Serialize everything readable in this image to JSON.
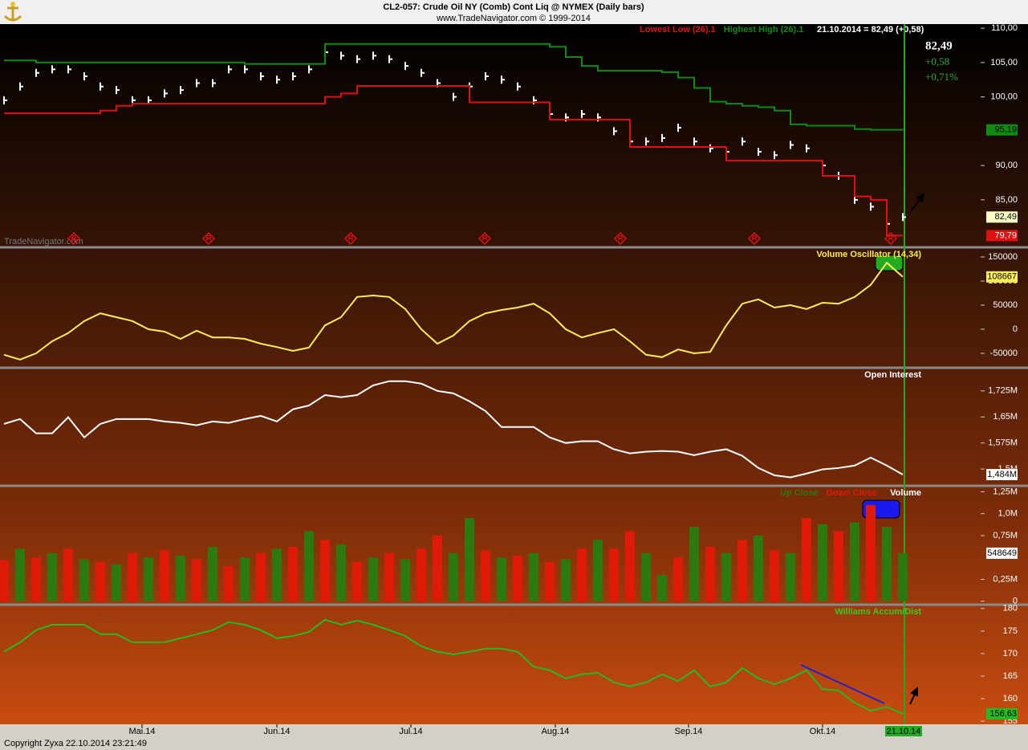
{
  "header": {
    "title": "CL2-057:  Crude Oil NY (Comb) Cont Liq @ NYMEX  (Daily bars)",
    "subtitle": "www.TradeNavigator.com © 1999-2014"
  },
  "footer": "Copyright Zyxa    22.10.2014 23:21:49",
  "watermark": "TradeNavigator.com",
  "event_marker": "R",
  "x_axis": {
    "xlim": [
      0,
      60.85
    ],
    "xticks": [
      {
        "value": 8.6,
        "label": "Mai.14"
      },
      {
        "value": 17,
        "label": "Jun.14"
      },
      {
        "value": 25.35,
        "label": "Jul.14"
      },
      {
        "value": 34.35,
        "label": "Aug.14"
      },
      {
        "value": 42.65,
        "label": "Sep.14"
      },
      {
        "value": 51,
        "label": "Okt.14"
      }
    ],
    "cursor": {
      "value": 56,
      "label": "21.10.14",
      "color": "#22aa22"
    }
  },
  "price_info": {
    "date_value": "21.10.2014 = 82,49 (+0,58)",
    "last": "82,49",
    "change": "+0,58",
    "change_pct": "+0,71%"
  },
  "chart_data": [
    {
      "type": "line",
      "ylim": [
        78.2,
        110.6
      ],
      "yticks": [
        {
          "value": 110,
          "label": "110,00"
        },
        {
          "value": 105,
          "label": "105,00"
        },
        {
          "value": 100,
          "label": "100,00"
        },
        {
          "value": 90,
          "label": "90,00"
        },
        {
          "value": 85,
          "label": "85,00"
        }
      ],
      "grid": false,
      "series": [
        {
          "color": "#ffffff",
          "marker": "tick",
          "values": [
            99.5,
            101.5,
            103.5,
            104,
            104,
            103,
            101.5,
            101,
            99.5,
            99.5,
            100.5,
            101,
            102,
            102,
            104,
            104,
            103,
            102.5,
            103,
            104,
            106.5,
            106,
            105.5,
            106,
            105.5,
            104.5,
            103.5,
            102,
            100,
            101.5,
            103,
            102.5,
            101.5,
            99.5,
            97.5,
            97,
            97.5,
            97,
            95,
            93.5,
            93.5,
            94,
            95.5,
            93.5,
            92.5,
            92,
            93.5,
            92,
            91.5,
            93,
            92.5,
            90,
            88.5,
            85,
            84,
            81.5,
            82.49
          ]
        },
        {
          "name": "Lowest Low (26).1",
          "color": "#e01010",
          "step": true,
          "values": [
            97.6,
            97.6,
            97.6,
            97.6,
            97.6,
            97.6,
            98,
            98.7,
            99,
            99,
            99,
            99,
            99,
            99,
            99,
            99,
            99,
            99,
            99,
            99,
            100,
            100.5,
            101.6,
            101.6,
            101.6,
            101.6,
            101.6,
            101.6,
            101.6,
            99.2,
            99.2,
            99.2,
            99.2,
            99.2,
            96.7,
            96.7,
            96.7,
            96.7,
            96.7,
            92.7,
            92.7,
            92.7,
            92.7,
            92.7,
            92.7,
            90.7,
            90.7,
            90.7,
            90.7,
            90.7,
            90.7,
            88.5,
            88.5,
            85.5,
            85,
            79.79,
            79.79
          ]
        },
        {
          "name": "Highest High (26).1",
          "color": "#108a10",
          "step": true,
          "values": [
            105.3,
            105.3,
            105,
            105,
            105,
            105,
            105,
            105,
            105,
            105,
            105,
            105,
            105,
            105,
            105,
            104.8,
            104.8,
            104.8,
            104.8,
            104.8,
            107.7,
            107.7,
            107.7,
            107.7,
            107.7,
            107.7,
            107.7,
            107.7,
            107.7,
            107.7,
            107.7,
            107.7,
            107.7,
            107.7,
            107.3,
            105.8,
            104.5,
            103.8,
            103.8,
            103.8,
            103.8,
            103.6,
            102.8,
            101.3,
            99.3,
            99,
            98.7,
            98.5,
            98,
            96,
            95.8,
            95.8,
            95.8,
            95.3,
            95.2,
            95.2,
            95.19
          ]
        }
      ],
      "tags": [
        {
          "value": 82.49,
          "label": "82,49",
          "bg": "#ffffc8",
          "fg": "#000000"
        },
        {
          "value": 79.79,
          "label": "79,79",
          "bg": "#e01010",
          "fg": "#ffffff"
        },
        {
          "value": 95.19,
          "label": "95,19",
          "bg": "#108a10",
          "fg": "#000000"
        }
      ]
    },
    {
      "type": "line",
      "title": "Volume Oscillator (14,34)",
      "title_color": "#ffee44",
      "ylim": [
        -78333,
        166667
      ],
      "yticks": [
        150000,
        100000,
        50000,
        0,
        -50000
      ],
      "grid": false,
      "series": [
        {
          "color": "#ffee55",
          "values": [
            -53000,
            -63000,
            -50000,
            -25000,
            -8000,
            17000,
            33000,
            25000,
            17000,
            0,
            -5000,
            -20000,
            -3000,
            -17000,
            -17000,
            -20000,
            -30000,
            -37000,
            -45000,
            -38000,
            8000,
            25000,
            67000,
            70000,
            67000,
            42000,
            0,
            -30000,
            -13000,
            17000,
            33000,
            40000,
            45000,
            53000,
            33000,
            0,
            -17000,
            -8000,
            0,
            -25000,
            -53000,
            -58000,
            -42000,
            -50000,
            -47000,
            8000,
            53000,
            62000,
            45000,
            50000,
            42000,
            55000,
            53000,
            67000,
            92000,
            138000,
            108667
          ]
        }
      ],
      "tags": [
        {
          "value": 108667,
          "label": "108667",
          "bg": "#ffee55",
          "fg": "#000000"
        }
      ]
    },
    {
      "type": "line",
      "title": "Open Interest",
      "title_color": "#ffffff",
      "ylim": [
        1.454,
        1.787
      ],
      "yticks": [
        {
          "value": 1.725,
          "label": "1,725M"
        },
        {
          "value": 1.65,
          "label": "1,65M"
        },
        {
          "value": 1.575,
          "label": "1,575M"
        },
        {
          "value": 1.5,
          "label": "1,5M"
        }
      ],
      "grid": false,
      "series": [
        {
          "color": "#ffffff",
          "values": [
            1.63,
            1.644,
            1.603,
            1.603,
            1.649,
            1.591,
            1.63,
            1.644,
            1.644,
            1.644,
            1.637,
            1.633,
            1.626,
            1.637,
            1.633,
            1.644,
            1.653,
            1.637,
            1.672,
            1.683,
            1.713,
            1.707,
            1.713,
            1.741,
            1.753,
            1.753,
            1.746,
            1.725,
            1.718,
            1.695,
            1.667,
            1.621,
            1.621,
            1.621,
            1.591,
            1.575,
            1.58,
            1.58,
            1.557,
            1.545,
            1.55,
            1.552,
            1.55,
            1.54,
            1.55,
            1.557,
            1.538,
            1.503,
            1.482,
            1.476,
            1.487,
            1.499,
            1.503,
            1.51,
            1.533,
            1.51,
            1.484
          ]
        }
      ],
      "tags": [
        {
          "value": 1.484,
          "label": "1,484M",
          "bg": "#ffffff",
          "fg": "#000000"
        }
      ]
    },
    {
      "type": "bar",
      "title": "Volume",
      "title_color": "#ffffff",
      "ylim": [
        -0.03,
        1.3
      ],
      "yticks": [
        {
          "value": 1.25,
          "label": "1,25M"
        },
        {
          "value": 1.0,
          "label": "1,0M"
        },
        {
          "value": 0.75,
          "label": "0,75M"
        },
        {
          "value": 0.25,
          "label": "0,25M"
        },
        0
      ],
      "grid": false,
      "series": [
        {
          "name": "Up Close",
          "color": "#2a7a10",
          "values": [
            null,
            0.6,
            null,
            0.55,
            null,
            0.48,
            null,
            0.42,
            null,
            0.5,
            null,
            0.52,
            null,
            0.62,
            null,
            0.5,
            null,
            0.6,
            null,
            0.8,
            null,
            0.65,
            null,
            0.5,
            null,
            0.48,
            null,
            null,
            0.55,
            0.95,
            null,
            0.5,
            null,
            0.55,
            null,
            0.48,
            null,
            0.7,
            null,
            null,
            0.55,
            0.3,
            null,
            0.85,
            null,
            0.55,
            null,
            0.75,
            null,
            0.55,
            null,
            0.88,
            null,
            0.9,
            null,
            0.85,
            0.548649
          ]
        },
        {
          "name": "Down Close",
          "color": "#e01a08",
          "values": [
            0.47,
            null,
            0.5,
            null,
            0.6,
            null,
            0.45,
            null,
            0.55,
            null,
            0.58,
            null,
            0.48,
            null,
            0.4,
            null,
            0.55,
            null,
            0.62,
            null,
            0.7,
            null,
            0.45,
            null,
            0.55,
            null,
            0.6,
            0.75,
            null,
            null,
            0.58,
            null,
            0.52,
            null,
            0.45,
            null,
            0.6,
            null,
            0.6,
            0.8,
            null,
            null,
            0.5,
            null,
            0.62,
            null,
            0.7,
            null,
            0.58,
            null,
            0.95,
            null,
            0.8,
            null,
            1.1,
            null,
            null
          ]
        }
      ],
      "tags": [
        {
          "value": 0.548649,
          "label": "548649",
          "bg": "#ffffff",
          "fg": "#000000"
        }
      ]
    },
    {
      "type": "line",
      "title": "Williams Accum/Dist",
      "title_color": "#33cc22",
      "ylim": [
        154.3,
        180.5
      ],
      "yticks": [
        180,
        175,
        170,
        165,
        160,
        155
      ],
      "grid": false,
      "series": [
        {
          "color": "#22bb22",
          "values": [
            170.4,
            172.5,
            175.2,
            176.4,
            176.4,
            176.4,
            174.3,
            174.3,
            172.5,
            172.5,
            172.5,
            173.4,
            174.3,
            175.2,
            177,
            176.4,
            175.2,
            173.4,
            173.9,
            174.8,
            177.5,
            176.4,
            177.3,
            176.4,
            175.2,
            173.9,
            171.6,
            170.4,
            169.8,
            170.4,
            171.1,
            171.1,
            170.4,
            167.1,
            166.3,
            164.5,
            165.4,
            165.7,
            163.6,
            162.7,
            163.6,
            165.4,
            163.9,
            166.3,
            162.7,
            163.6,
            166.8,
            164.5,
            163.2,
            164.5,
            166.3,
            162.1,
            161.8,
            159.1,
            157.3,
            158.2,
            156.63
          ]
        }
      ],
      "tags": [
        {
          "value": 156.63,
          "label": "156,63",
          "bg": "#22bb22",
          "fg": "#000000"
        }
      ]
    }
  ]
}
